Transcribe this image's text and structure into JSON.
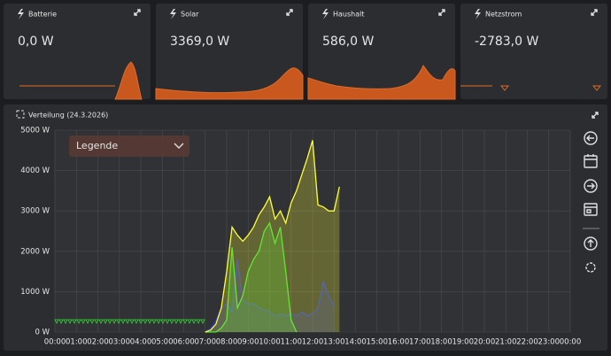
{
  "cards": [
    {
      "title": "Batterie",
      "value": "0,0 W"
    },
    {
      "title": "Solar",
      "value": "3369,0 W"
    },
    {
      "title": "Haushalt",
      "value": "586,0 W"
    },
    {
      "title": "Netzstrom",
      "value": "-2783,0 W"
    }
  ],
  "panel": {
    "title": "Verteilung (24.3.2026)",
    "legend_button": "Legende"
  },
  "chart_data": {
    "type": "line",
    "x": [
      7,
      7.25,
      7.5,
      7.75,
      8,
      8.25,
      8.5,
      8.75,
      9,
      9.25,
      9.5,
      9.75,
      10,
      10.25,
      10.5,
      10.75,
      11,
      11.25,
      11.5,
      11.75,
      12,
      12.25,
      12.5,
      12.75,
      13,
      13.25
    ],
    "series": [
      {
        "color": "#ffff33",
        "values": [
          0,
          50,
          200,
          600,
          1500,
          2600,
          2400,
          2250,
          2400,
          2600,
          2900,
          3100,
          3350,
          2800,
          3000,
          2700,
          3200,
          3500,
          3900,
          4300,
          4750,
          3150,
          3100,
          3000,
          3000,
          3600
        ]
      },
      {
        "color": "#33dd33",
        "values": [
          0,
          0,
          0,
          100,
          300,
          2100,
          600,
          900,
          1500,
          1800,
          2000,
          2500,
          2700,
          2200,
          2600,
          1500,
          300,
          0,
          null,
          null,
          null,
          null,
          null,
          null,
          null,
          null
        ]
      },
      {
        "color": "#2233cc",
        "values": [
          0,
          100,
          300,
          600,
          700,
          500,
          1800,
          800,
          700,
          700,
          600,
          550,
          500,
          400,
          450,
          400,
          450,
          400,
          500,
          400,
          450,
          600,
          1250,
          900,
          650,
          null
        ]
      }
    ],
    "xlim": [
      0,
      24
    ],
    "ylim": [
      0,
      5000
    ],
    "xticks": [
      {
        "value": 0,
        "label": "00:00"
      },
      {
        "value": 1,
        "label": "01:00"
      },
      {
        "value": 2,
        "label": "02:00"
      },
      {
        "value": 3,
        "label": "03:00"
      },
      {
        "value": 4,
        "label": "04:00"
      },
      {
        "value": 5,
        "label": "05:00"
      },
      {
        "value": 6,
        "label": "06:00"
      },
      {
        "value": 7,
        "label": "07:00"
      },
      {
        "value": 8,
        "label": "08:00"
      },
      {
        "value": 9,
        "label": "09:00"
      },
      {
        "value": 10,
        "label": "10:00"
      },
      {
        "value": 11,
        "label": "11:00"
      },
      {
        "value": 12,
        "label": "12:00"
      },
      {
        "value": 13,
        "label": "13:00"
      },
      {
        "value": 14,
        "label": "14:00"
      },
      {
        "value": 15,
        "label": "15:00"
      },
      {
        "value": 16,
        "label": "16:00"
      },
      {
        "value": 17,
        "label": "17:00"
      },
      {
        "value": 18,
        "label": "18:00"
      },
      {
        "value": 19,
        "label": "19:00"
      },
      {
        "value": 20,
        "label": "20:00"
      },
      {
        "value": 21,
        "label": "21:00"
      },
      {
        "value": 22,
        "label": "22:00"
      },
      {
        "value": 23,
        "label": "23:00"
      },
      {
        "value": 24,
        "label": "00:00"
      }
    ],
    "yticks": [
      {
        "value": 0,
        "label": "0 W"
      },
      {
        "value": 1000,
        "label": "1000 W"
      },
      {
        "value": 2000,
        "label": "2000 W"
      },
      {
        "value": 3000,
        "label": "3000 W"
      },
      {
        "value": 4000,
        "label": "4000 W"
      },
      {
        "value": 5000,
        "label": "5000 W"
      }
    ],
    "grid": true
  }
}
